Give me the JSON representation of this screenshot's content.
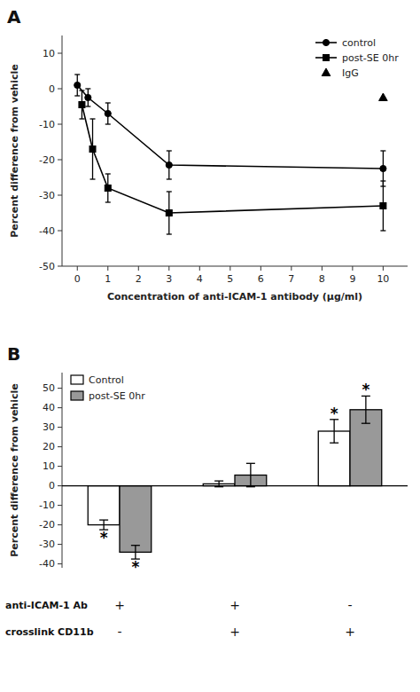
{
  "chart_data": [
    {
      "type": "line",
      "title": "A",
      "x_label": "Concentration of anti-ICAM-1 antibody (μg/ml)",
      "y_label": "Percent difference from vehicle",
      "xlim": [
        -0.5,
        10.8
      ],
      "ylim": [
        -50,
        15
      ],
      "xticks": [
        0,
        1,
        2,
        3,
        4,
        5,
        6,
        7,
        8,
        9,
        10
      ],
      "yticks": [
        -50,
        -40,
        -30,
        -20,
        -10,
        0,
        10
      ],
      "grid": false,
      "legend": "upper right",
      "series": [
        {
          "name": "control",
          "color": "#000000",
          "marker": "circle",
          "line_style": "solid",
          "x": [
            0.0,
            0.35,
            1.0,
            3.0,
            10.0
          ],
          "values": [
            1.0,
            -2.5,
            -7.0,
            -21.5,
            -22.5
          ],
          "errors": [
            3.0,
            2.5,
            3.0,
            4.0,
            5.0
          ]
        },
        {
          "name": "post-SE 0hr",
          "color": "#000000",
          "marker": "square",
          "line_style": "solid",
          "x": [
            0.15,
            0.5,
            1.0,
            3.0,
            10.0
          ],
          "values": [
            -4.5,
            -17.0,
            -28.0,
            -35.0,
            -33.0
          ],
          "errors": [
            4.0,
            8.5,
            4.0,
            6.0,
            7.0
          ]
        },
        {
          "name": "IgG",
          "type": "scatter",
          "color": "#000000",
          "marker": "triangle",
          "x": [
            10.0
          ],
          "values": [
            -2.5
          ]
        }
      ]
    },
    {
      "type": "bar",
      "title": "B",
      "y_label": "Percent difference from vehicle",
      "categories": [
        null,
        null,
        null
      ],
      "ylim": [
        -42,
        58
      ],
      "yticks": [
        -40,
        -30,
        -20,
        -10,
        0,
        10,
        20,
        30,
        40,
        50
      ],
      "grid": false,
      "legend": "upper left",
      "series": [
        {
          "name": "Control",
          "color": "#ffffff",
          "values": [
            -20.0,
            1.0,
            28.0
          ],
          "errors": [
            2.5,
            1.5,
            6.0
          ],
          "significance": [
            "*",
            null,
            "*"
          ]
        },
        {
          "name": "post-SE 0hr",
          "color": "#999999",
          "values": [
            -34.0,
            5.5,
            39.0
          ],
          "errors": [
            3.5,
            6.0,
            7.0
          ],
          "significance": [
            "*",
            null,
            "*"
          ]
        }
      ],
      "annotations": [
        {
          "label": "anti-ICAM-1 Ab",
          "values": [
            "+",
            "+",
            "-"
          ]
        },
        {
          "label": "crosslink CD11b",
          "values": [
            "-",
            "+",
            "+"
          ]
        }
      ]
    }
  ]
}
